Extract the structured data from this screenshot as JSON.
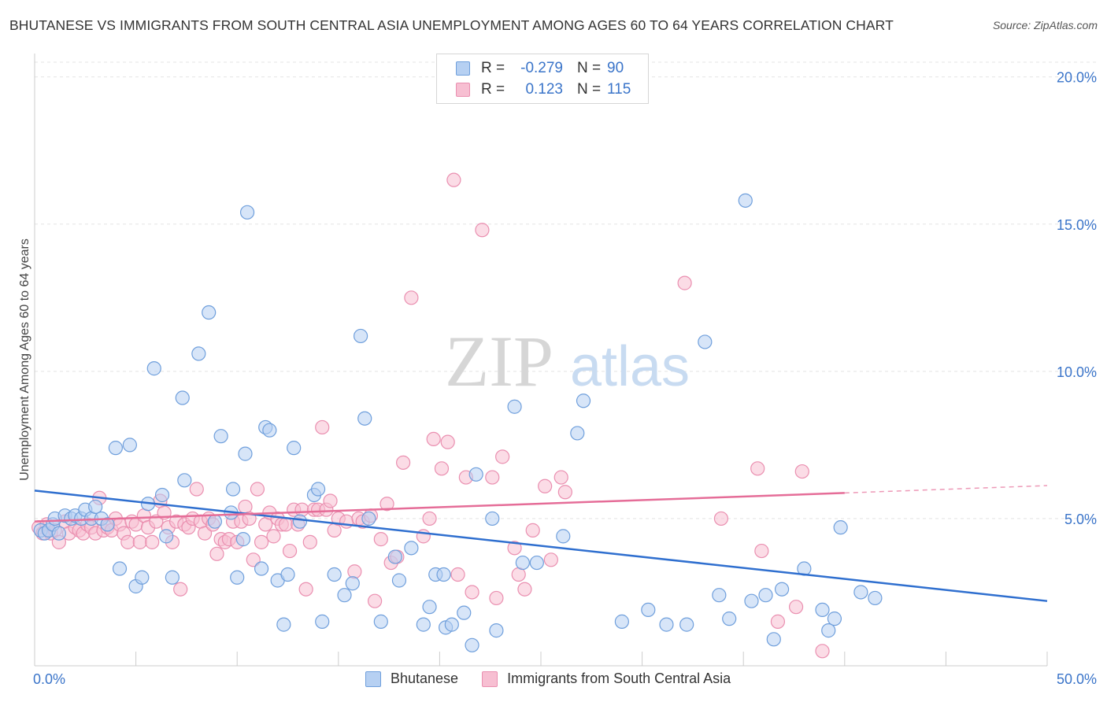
{
  "title": "BHUTANESE VS IMMIGRANTS FROM SOUTH CENTRAL ASIA UNEMPLOYMENT AMONG AGES 60 TO 64 YEARS CORRELATION CHART",
  "source": "Source: ZipAtlas.com",
  "watermark": {
    "zip": "ZIP",
    "atlas": "atlas"
  },
  "legend": {
    "rows": [
      {
        "r_label": "R =",
        "r_value": "-0.279",
        "n_label": "N =",
        "n_value": "90"
      },
      {
        "r_label": "R =",
        "r_value": "0.123",
        "n_label": "N =",
        "n_value": "115"
      }
    ]
  },
  "colors": {
    "blue_fill": "#b6d0f2",
    "blue_stroke": "#6f9fdc",
    "blue_line": "#2f6fcf",
    "pink_fill": "#f7bfd2",
    "pink_stroke": "#ea8fb0",
    "pink_line": "#e56d98",
    "tick_label": "#3a74c9",
    "grid": "#e3e3e3"
  },
  "chart_data": {
    "type": "scatter",
    "title": "BHUTANESE VS IMMIGRANTS FROM SOUTH CENTRAL ASIA UNEMPLOYMENT AMONG AGES 60 TO 64 YEARS CORRELATION CHART",
    "xlabel": "",
    "ylabel": "Unemployment Among Ages 60 to 64 years",
    "xlim": [
      0,
      50
    ],
    "ylim": [
      0,
      20.5
    ],
    "x_tick_labels": [
      "0.0%",
      "50.0%"
    ],
    "y_ticks": [
      5,
      10,
      15,
      20
    ],
    "y_tick_labels": [
      "5.0%",
      "10.0%",
      "15.0%",
      "20.0%"
    ],
    "grid": "horizontal dashed",
    "legend_position": "top-center and bottom",
    "series": [
      {
        "name": "Bhutanese",
        "trend": {
          "x": [
            0,
            50
          ],
          "y": [
            5.95,
            2.2
          ],
          "style": "solid"
        },
        "points": [
          [
            0.3,
            4.6
          ],
          [
            0.5,
            4.5
          ],
          [
            0.7,
            4.6
          ],
          [
            0.9,
            4.8
          ],
          [
            1.0,
            5.0
          ],
          [
            1.2,
            4.5
          ],
          [
            1.5,
            5.1
          ],
          [
            1.8,
            5.0
          ],
          [
            2.0,
            5.1
          ],
          [
            2.3,
            5.0
          ],
          [
            2.5,
            5.3
          ],
          [
            2.8,
            5.0
          ],
          [
            3.0,
            5.4
          ],
          [
            3.3,
            5.0
          ],
          [
            3.6,
            4.8
          ],
          [
            4.0,
            7.4
          ],
          [
            4.2,
            3.3
          ],
          [
            4.7,
            7.5
          ],
          [
            5.0,
            2.7
          ],
          [
            5.3,
            3.0
          ],
          [
            5.6,
            5.5
          ],
          [
            5.9,
            10.1
          ],
          [
            6.3,
            5.8
          ],
          [
            6.5,
            4.4
          ],
          [
            6.8,
            3.0
          ],
          [
            7.3,
            9.1
          ],
          [
            7.4,
            6.3
          ],
          [
            8.1,
            10.6
          ],
          [
            8.6,
            12.0
          ],
          [
            8.9,
            4.9
          ],
          [
            9.2,
            7.8
          ],
          [
            9.7,
            5.2
          ],
          [
            9.8,
            6.0
          ],
          [
            10.0,
            3.0
          ],
          [
            10.3,
            4.3
          ],
          [
            10.4,
            7.2
          ],
          [
            10.5,
            15.4
          ],
          [
            11.2,
            3.3
          ],
          [
            11.4,
            8.1
          ],
          [
            11.6,
            8.0
          ],
          [
            12.0,
            2.9
          ],
          [
            12.3,
            1.4
          ],
          [
            12.5,
            3.1
          ],
          [
            12.8,
            7.4
          ],
          [
            13.1,
            4.9
          ],
          [
            13.8,
            5.8
          ],
          [
            14.0,
            6.0
          ],
          [
            14.2,
            1.5
          ],
          [
            14.8,
            3.1
          ],
          [
            15.3,
            2.4
          ],
          [
            15.7,
            2.8
          ],
          [
            16.1,
            11.2
          ],
          [
            16.3,
            8.4
          ],
          [
            16.5,
            5.0
          ],
          [
            17.1,
            1.5
          ],
          [
            17.8,
            3.7
          ],
          [
            18.0,
            2.9
          ],
          [
            18.6,
            4.0
          ],
          [
            19.2,
            1.4
          ],
          [
            19.5,
            2.0
          ],
          [
            19.8,
            3.1
          ],
          [
            20.2,
            3.1
          ],
          [
            20.3,
            1.3
          ],
          [
            20.6,
            1.4
          ],
          [
            21.2,
            1.8
          ],
          [
            21.6,
            0.7
          ],
          [
            21.8,
            6.5
          ],
          [
            22.6,
            5.0
          ],
          [
            22.8,
            1.2
          ],
          [
            23.7,
            8.8
          ],
          [
            24.1,
            3.5
          ],
          [
            24.8,
            3.5
          ],
          [
            26.1,
            4.4
          ],
          [
            26.8,
            7.9
          ],
          [
            27.1,
            9.0
          ],
          [
            29.0,
            1.5
          ],
          [
            30.3,
            1.9
          ],
          [
            31.2,
            1.4
          ],
          [
            32.2,
            1.4
          ],
          [
            33.1,
            11.0
          ],
          [
            33.8,
            2.4
          ],
          [
            34.3,
            1.6
          ],
          [
            35.1,
            15.8
          ],
          [
            35.4,
            2.2
          ],
          [
            36.1,
            2.4
          ],
          [
            36.5,
            0.9
          ],
          [
            36.9,
            2.6
          ],
          [
            38.0,
            3.3
          ],
          [
            38.9,
            1.9
          ],
          [
            39.5,
            1.6
          ],
          [
            39.8,
            4.7
          ],
          [
            40.8,
            2.5
          ],
          [
            41.5,
            2.3
          ],
          [
            39.2,
            1.2
          ]
        ]
      },
      {
        "name": "Immigrants from South Central Asia",
        "trend": {
          "x": [
            0,
            40
          ],
          "y": [
            4.9,
            5.87
          ],
          "style": "solid",
          "dashed_extension": {
            "x": [
              40,
              50
            ],
            "y": [
              5.87,
              6.12
            ]
          }
        },
        "points": [
          [
            0.2,
            4.7
          ],
          [
            0.4,
            4.5
          ],
          [
            0.6,
            4.8
          ],
          [
            0.8,
            4.5
          ],
          [
            1.0,
            4.6
          ],
          [
            1.2,
            4.2
          ],
          [
            1.5,
            4.9
          ],
          [
            1.7,
            4.5
          ],
          [
            2.0,
            4.7
          ],
          [
            2.2,
            4.6
          ],
          [
            2.4,
            4.5
          ],
          [
            2.6,
            4.8
          ],
          [
            2.8,
            4.7
          ],
          [
            3.0,
            4.5
          ],
          [
            3.2,
            5.7
          ],
          [
            3.4,
            4.6
          ],
          [
            3.6,
            4.7
          ],
          [
            3.8,
            4.6
          ],
          [
            4.0,
            5.0
          ],
          [
            4.2,
            4.8
          ],
          [
            4.4,
            4.5
          ],
          [
            4.6,
            4.2
          ],
          [
            4.8,
            4.9
          ],
          [
            5.0,
            4.8
          ],
          [
            5.2,
            4.2
          ],
          [
            5.4,
            5.1
          ],
          [
            5.6,
            4.7
          ],
          [
            5.8,
            4.2
          ],
          [
            6.0,
            4.9
          ],
          [
            6.2,
            5.6
          ],
          [
            6.4,
            5.2
          ],
          [
            6.6,
            4.7
          ],
          [
            6.8,
            4.2
          ],
          [
            7.0,
            4.9
          ],
          [
            7.2,
            2.6
          ],
          [
            7.4,
            4.8
          ],
          [
            7.6,
            4.7
          ],
          [
            7.8,
            5.0
          ],
          [
            8.0,
            6.0
          ],
          [
            8.2,
            4.9
          ],
          [
            8.4,
            4.5
          ],
          [
            8.6,
            5.0
          ],
          [
            8.8,
            4.8
          ],
          [
            9.0,
            3.8
          ],
          [
            9.2,
            4.3
          ],
          [
            9.4,
            4.2
          ],
          [
            9.6,
            4.3
          ],
          [
            9.8,
            4.9
          ],
          [
            10.0,
            4.2
          ],
          [
            10.2,
            4.9
          ],
          [
            10.4,
            5.4
          ],
          [
            10.6,
            5.0
          ],
          [
            10.8,
            3.6
          ],
          [
            11.0,
            6.0
          ],
          [
            11.2,
            4.2
          ],
          [
            11.4,
            4.8
          ],
          [
            11.6,
            5.2
          ],
          [
            11.8,
            4.4
          ],
          [
            12.0,
            5.0
          ],
          [
            12.2,
            4.8
          ],
          [
            12.4,
            4.8
          ],
          [
            12.6,
            3.9
          ],
          [
            12.8,
            5.3
          ],
          [
            13.0,
            4.8
          ],
          [
            13.2,
            5.3
          ],
          [
            13.4,
            2.6
          ],
          [
            13.6,
            4.2
          ],
          [
            13.8,
            5.3
          ],
          [
            14.0,
            5.3
          ],
          [
            14.2,
            8.1
          ],
          [
            14.4,
            5.3
          ],
          [
            14.6,
            5.6
          ],
          [
            14.8,
            4.6
          ],
          [
            15.0,
            5.0
          ],
          [
            15.4,
            4.9
          ],
          [
            15.8,
            3.2
          ],
          [
            16.0,
            5.0
          ],
          [
            16.2,
            4.9
          ],
          [
            16.6,
            5.1
          ],
          [
            16.8,
            2.2
          ],
          [
            17.1,
            4.3
          ],
          [
            17.4,
            5.5
          ],
          [
            17.6,
            3.5
          ],
          [
            17.9,
            3.7
          ],
          [
            18.2,
            6.9
          ],
          [
            18.6,
            12.5
          ],
          [
            19.2,
            4.4
          ],
          [
            19.5,
            5.0
          ],
          [
            19.7,
            7.7
          ],
          [
            20.1,
            6.7
          ],
          [
            20.4,
            7.6
          ],
          [
            20.7,
            16.5
          ],
          [
            20.9,
            3.1
          ],
          [
            21.3,
            6.4
          ],
          [
            21.6,
            2.5
          ],
          [
            22.1,
            14.8
          ],
          [
            22.6,
            6.4
          ],
          [
            22.8,
            2.3
          ],
          [
            23.1,
            7.1
          ],
          [
            23.7,
            4.0
          ],
          [
            23.9,
            3.1
          ],
          [
            24.2,
            2.6
          ],
          [
            24.6,
            4.6
          ],
          [
            25.2,
            6.1
          ],
          [
            25.5,
            3.6
          ],
          [
            26.0,
            6.4
          ],
          [
            26.2,
            5.9
          ],
          [
            32.1,
            13.0
          ],
          [
            33.9,
            5.0
          ],
          [
            35.7,
            6.7
          ],
          [
            35.9,
            3.9
          ],
          [
            36.7,
            1.5
          ],
          [
            37.6,
            2.0
          ],
          [
            37.9,
            6.6
          ],
          [
            38.9,
            0.5
          ]
        ]
      }
    ]
  }
}
